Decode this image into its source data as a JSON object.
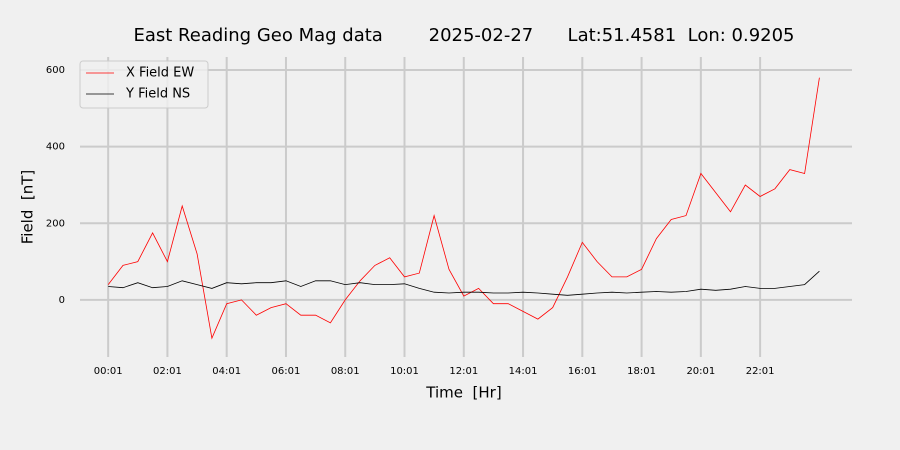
{
  "chart_data": {
    "type": "line",
    "title": "East Reading Geo Mag data        2025-02-27      Lat:51.4581  Lon: 0.9205",
    "x_label": "Time  [Hr]",
    "y_label": "Field  [nT]",
    "x": [
      1,
      31,
      61,
      91,
      121,
      151,
      181,
      211,
      241,
      271,
      301,
      331,
      361,
      391,
      421,
      451,
      481,
      511,
      541,
      571,
      601,
      631,
      661,
      691,
      721,
      751,
      781,
      811,
      841,
      871,
      901,
      931,
      961,
      991,
      1021,
      1051,
      1081,
      1111,
      1141,
      1171,
      1201,
      1231,
      1261,
      1291,
      1321,
      1351,
      1381,
      1411,
      1441
    ],
    "series": [
      {
        "name": "X Field EW",
        "color": "#ff0000",
        "values": [
          40,
          90,
          100,
          175,
          100,
          245,
          120,
          -100,
          -10,
          0,
          -40,
          -20,
          -10,
          -40,
          -40,
          -60,
          0,
          50,
          90,
          110,
          60,
          70,
          220,
          80,
          10,
          30,
          -10,
          -10,
          -30,
          -50,
          -20,
          60,
          150,
          100,
          60,
          60,
          80,
          160,
          210,
          220,
          330,
          280,
          230,
          300,
          270,
          290,
          340,
          330,
          580
        ]
      },
      {
        "name": "Y Field NS",
        "color": "#000000",
        "values": [
          35,
          32,
          45,
          32,
          35,
          50,
          40,
          30,
          45,
          42,
          45,
          45,
          50,
          35,
          50,
          50,
          40,
          45,
          40,
          40,
          42,
          30,
          20,
          18,
          20,
          20,
          18,
          18,
          20,
          18,
          15,
          12,
          15,
          18,
          20,
          18,
          20,
          22,
          20,
          22,
          28,
          25,
          28,
          35,
          30,
          30,
          35,
          40,
          75
        ]
      }
    ],
    "xlim": [
      -56,
      1507
    ],
    "ylim": [
      -149,
      634
    ],
    "xticks": [
      {
        "value": 1,
        "label": "00:01"
      },
      {
        "value": 121,
        "label": "02:01"
      },
      {
        "value": 241,
        "label": "04:01"
      },
      {
        "value": 361,
        "label": "06:01"
      },
      {
        "value": 481,
        "label": "08:01"
      },
      {
        "value": 601,
        "label": "10:01"
      },
      {
        "value": 721,
        "label": "12:01"
      },
      {
        "value": 841,
        "label": "14:01"
      },
      {
        "value": 961,
        "label": "16:01"
      },
      {
        "value": 1081,
        "label": "18:01"
      },
      {
        "value": 1201,
        "label": "20:01"
      },
      {
        "value": 1321,
        "label": "22:01"
      }
    ],
    "yticks": [
      0,
      200,
      400,
      600
    ],
    "grid": true,
    "legend": "upper left"
  }
}
